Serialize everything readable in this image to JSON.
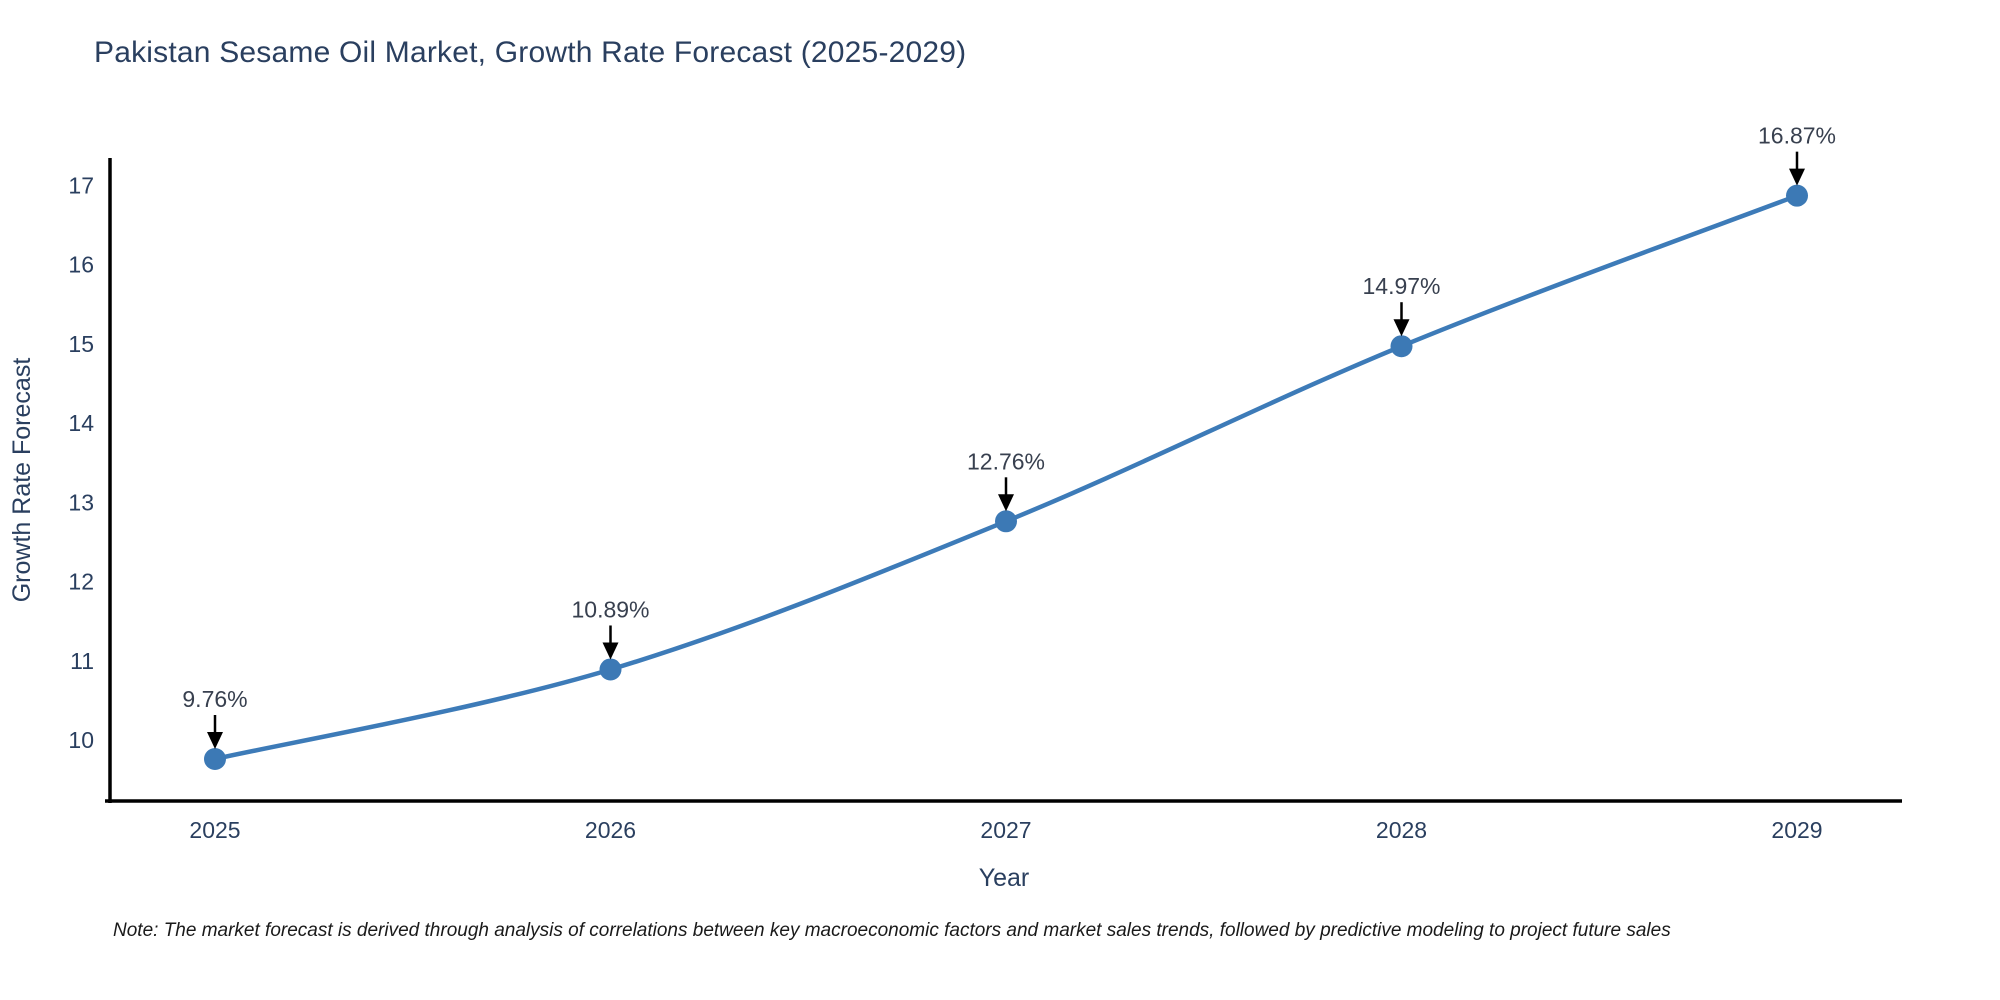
{
  "title": "Pakistan Sesame Oil Market, Growth Rate Forecast (2025-2029)",
  "note": "Note: The market forecast is derived through analysis of correlations between key macroeconomic factors and market sales trends, followed by predictive modeling to project future sales",
  "colors": {
    "line": "#3d7bb8",
    "marker": "#3c79b5",
    "text": "#2a3f5f",
    "annotation_text": "#38404f",
    "axis_line": "#000000",
    "arrow": "#000000",
    "background": "#ffffff"
  },
  "chart_data": {
    "type": "line",
    "title": "Pakistan Sesame Oil Market, Growth Rate Forecast (2025-2029)",
    "xlabel": "Year",
    "ylabel": "Growth Rate Forecast",
    "categories": [
      "2025",
      "2026",
      "2027",
      "2028",
      "2029"
    ],
    "series": [
      {
        "name": "Growth Rate Forecast",
        "values": [
          9.76,
          10.89,
          12.76,
          14.97,
          16.87
        ]
      }
    ],
    "point_labels": [
      "9.76%",
      "10.89%",
      "12.76%",
      "14.97%",
      "16.87%"
    ],
    "y_ticks": [
      10,
      11,
      12,
      13,
      14,
      15,
      16,
      17
    ],
    "ylim": [
      9.23,
      17.32
    ],
    "grid": false,
    "legend_position": "none",
    "line_shape": "spline",
    "annotations": "arrow-down-to-point"
  }
}
